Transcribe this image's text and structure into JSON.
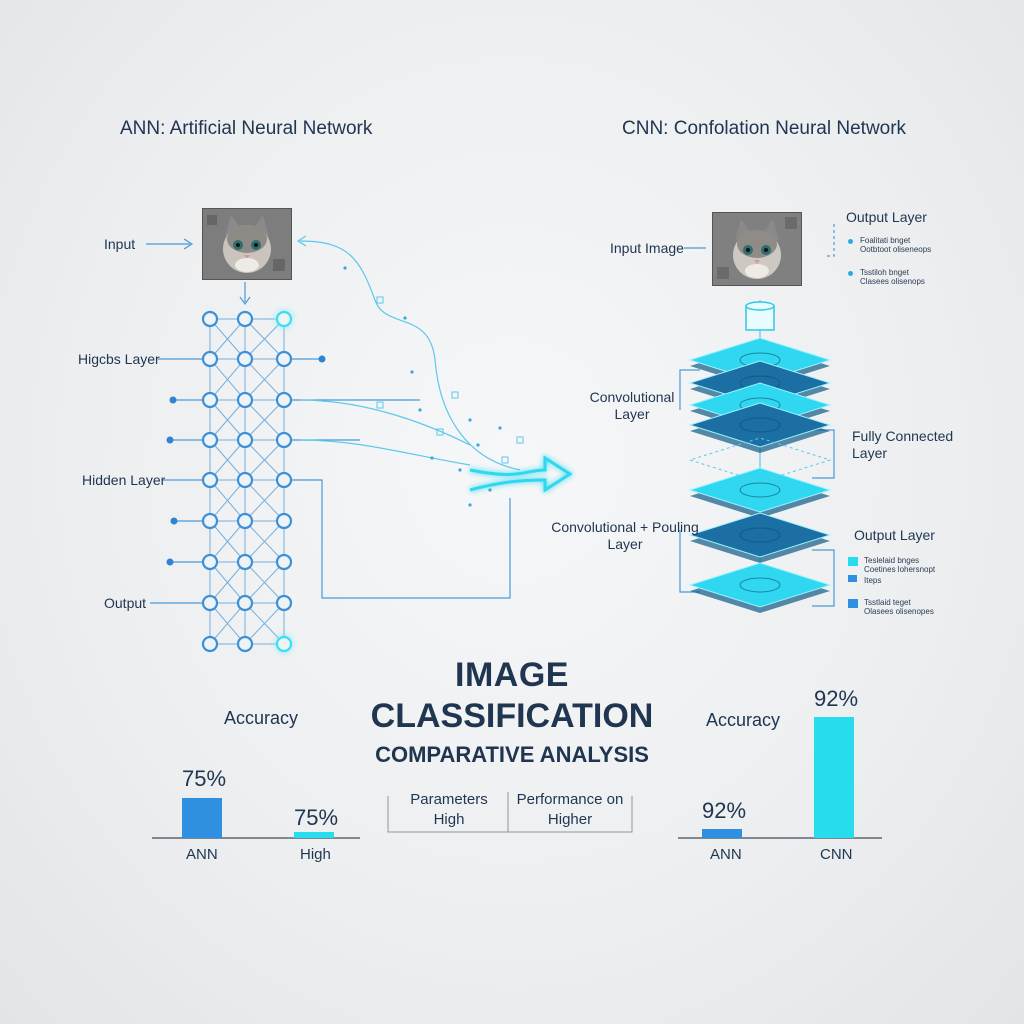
{
  "ann": {
    "title": "ANN: Artificial Neural Network",
    "labels": {
      "input": "Input",
      "hidden1": "Higcbs Layer",
      "hidden2": "Hidden Layer",
      "output": "Output"
    }
  },
  "cnn": {
    "title": "CNN: Confolation Neural Network",
    "labels": {
      "input_image": "Input Image",
      "convolutional": "Convolutional\nLayer",
      "fully_connected": "Fully Connected\nLayer",
      "conv_pooling": "Convolutional + Pouling\nLayer",
      "output_top": "Output Layer",
      "output_bottom": "Output Layer"
    },
    "legend_top": [
      {
        "line1": "Foalitati bnget",
        "line2": "Ootbtoot oliseneops"
      },
      {
        "line1": "Tsstiloh bnget",
        "line2": "Clasees olisenops"
      }
    ],
    "legend_bottom": [
      {
        "line1": "Teslelaid bnges",
        "line2": "Coetines lohersnopt",
        "line3": "Iteps"
      },
      {
        "line1": "Tsstlaid teget",
        "line2": "Olasees olisenopes"
      }
    ]
  },
  "center": {
    "line1": "IMAGE",
    "line2": "CLASSIFICATION",
    "line3": "COMPARATIVE ANALYSIS",
    "table": [
      {
        "top": "Parameters",
        "bottom": "High"
      },
      {
        "top": "Performance on",
        "bottom": "Higher"
      }
    ]
  },
  "colors": {
    "ann_bar": "#2f8fe0",
    "cyan_bar": "#27dcec",
    "node": "#3d8fd6",
    "node_bright": "#35e0f0",
    "layer_cyan": "#2fd8f0",
    "layer_dark": "#1b6fa3"
  },
  "chart_data": [
    {
      "type": "bar",
      "title": "Accuracy",
      "categories": [
        "ANN",
        "High"
      ],
      "values": [
        75,
        75
      ],
      "value_labels": [
        "75%",
        "75%"
      ],
      "ylim": [
        0,
        100
      ]
    },
    {
      "type": "bar",
      "title": "Accuracy",
      "categories": [
        "ANN",
        "CNN"
      ],
      "values": [
        92,
        92
      ],
      "value_labels": [
        "92%",
        "92%"
      ],
      "ylim": [
        0,
        100
      ]
    }
  ]
}
